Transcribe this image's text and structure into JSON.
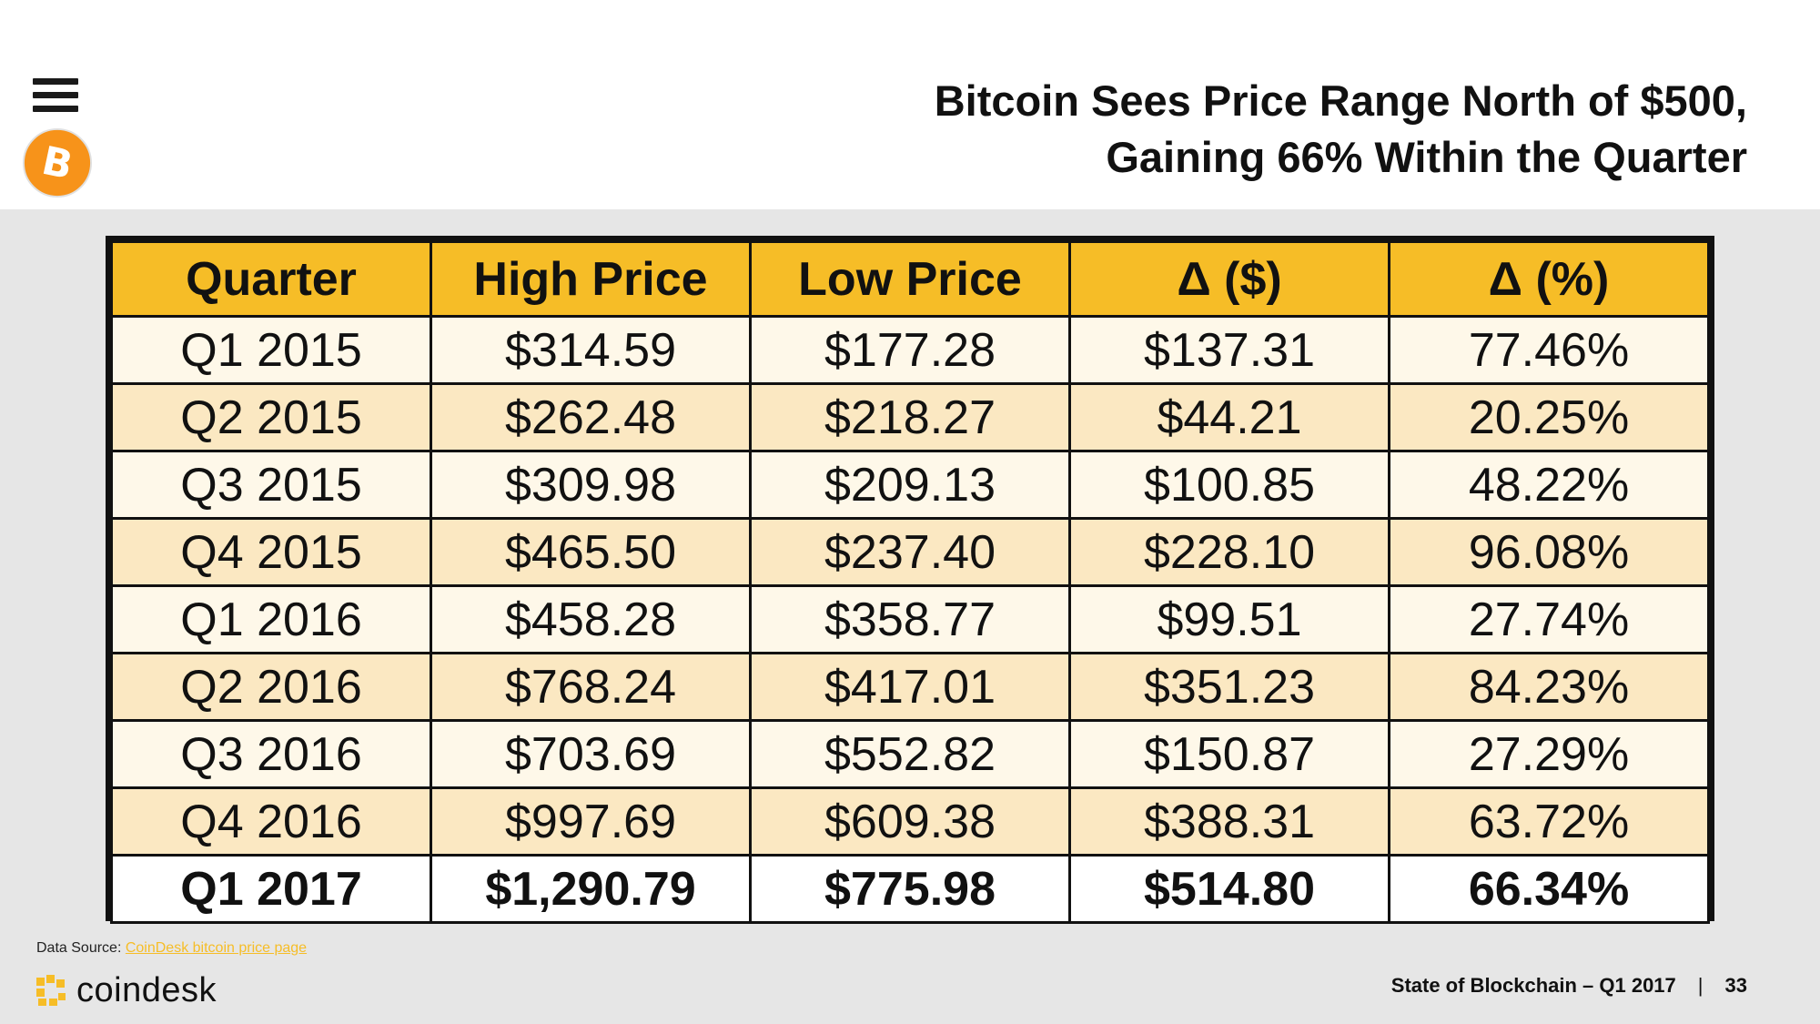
{
  "header": {
    "title_line1": "Bitcoin Sees Price Range North of $500,",
    "title_line2": "Gaining 66% Within the Quarter",
    "menu_icon": "hamburger-icon",
    "logo_icon": "bitcoin-logo-icon",
    "logo_letter": "B"
  },
  "table": {
    "columns": [
      "Quarter",
      "High Price",
      "Low Price",
      "Δ ($)",
      "Δ (%)"
    ],
    "rows": [
      [
        "Q1 2015",
        "$314.59",
        "$177.28",
        "$137.31",
        "77.46%"
      ],
      [
        "Q2 2015",
        "$262.48",
        "$218.27",
        "$44.21",
        "20.25%"
      ],
      [
        "Q3 2015",
        "$309.98",
        "$209.13",
        "$100.85",
        "48.22%"
      ],
      [
        "Q4 2015",
        "$465.50",
        "$237.40",
        "$228.10",
        "96.08%"
      ],
      [
        "Q1 2016",
        "$458.28",
        "$358.77",
        "$99.51",
        "27.74%"
      ],
      [
        "Q2 2016",
        "$768.24",
        "$417.01",
        "$351.23",
        "84.23%"
      ],
      [
        "Q3 2016",
        "$703.69",
        "$552.82",
        "$150.87",
        "27.29%"
      ],
      [
        "Q4 2016",
        "$997.69",
        "$609.38",
        "$388.31",
        "63.72%"
      ],
      [
        "Q1 2017",
        "$1,290.79",
        "$775.98",
        "$514.80",
        "66.34%"
      ]
    ]
  },
  "source": {
    "label": "Data Source:",
    "link_text": "CoinDesk bitcoin price page"
  },
  "footer": {
    "brand": "coindesk",
    "report": "State of Blockchain – Q1 2017",
    "separator": "|",
    "page_number": "33"
  },
  "colors": {
    "accent": "#f6bd27",
    "row_light": "#fef8e9",
    "row_tint": "#fbe8c2",
    "bitcoin_orange": "#f7931a"
  }
}
